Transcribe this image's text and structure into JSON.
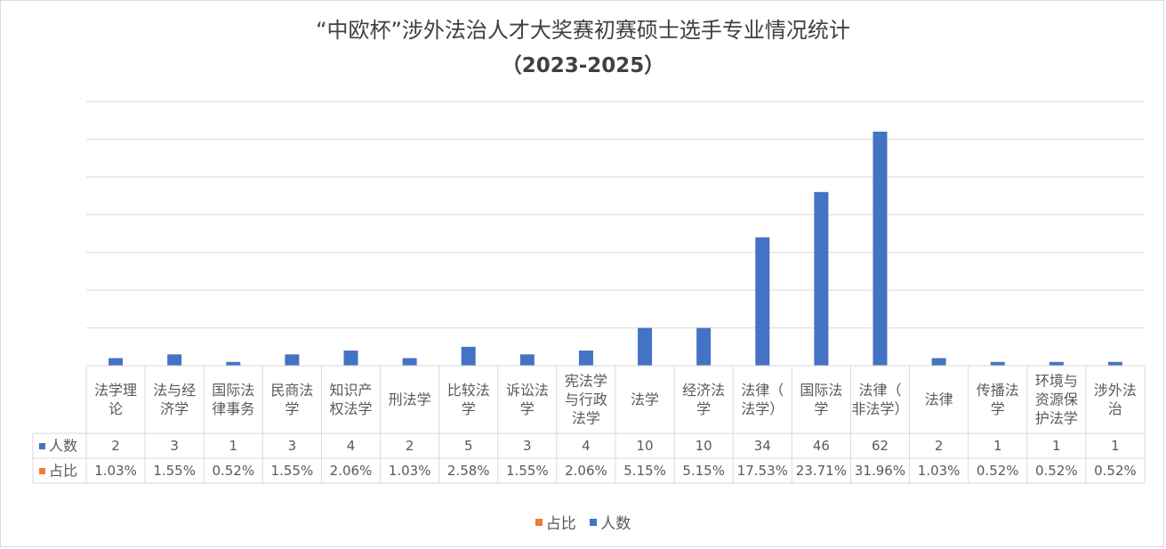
{
  "chart_data": {
    "type": "bar",
    "title": "“中欧杯”涉外法治人才大奖赛初赛硕士选手专业情况统计",
    "subtitle": "（2023-2025）",
    "categories": [
      [
        "法学理",
        "论"
      ],
      [
        "法与经",
        "济学"
      ],
      [
        "国际法",
        "律事务"
      ],
      [
        "民商法",
        "学"
      ],
      [
        "知识产",
        "权法学"
      ],
      [
        "刑法学"
      ],
      [
        "比较法",
        "学"
      ],
      [
        "诉讼法",
        "学"
      ],
      [
        "宪法学",
        "与行政",
        "法学"
      ],
      [
        "法学"
      ],
      [
        "经济法",
        "学"
      ],
      [
        "法律（",
        "法学）"
      ],
      [
        "国际法",
        "学"
      ],
      [
        "法律（",
        "非法学）"
      ],
      [
        "法律"
      ],
      [
        "传播法",
        "学"
      ],
      [
        "环境与",
        "资源保",
        "护法学"
      ],
      [
        "涉外法",
        "治"
      ]
    ],
    "series": [
      {
        "name": "人数",
        "color": "#4472C4",
        "values": [
          2,
          3,
          1,
          3,
          4,
          2,
          5,
          3,
          4,
          10,
          10,
          34,
          46,
          62,
          2,
          1,
          1,
          1
        ],
        "labels": [
          "2",
          "3",
          "1",
          "3",
          "4",
          "2",
          "5",
          "3",
          "4",
          "10",
          "10",
          "34",
          "46",
          "62",
          "2",
          "1",
          "1",
          "1"
        ]
      },
      {
        "name": "占比",
        "color": "#ED7D31",
        "values": [
          1.03,
          1.55,
          0.52,
          1.55,
          2.06,
          1.03,
          2.58,
          1.55,
          2.06,
          5.15,
          5.15,
          17.53,
          23.71,
          31.96,
          1.03,
          0.52,
          0.52,
          0.52
        ],
        "labels": [
          "1.03%",
          "1.55%",
          "0.52%",
          "1.55%",
          "2.06%",
          "1.03%",
          "2.58%",
          "1.55%",
          "2.06%",
          "5.15%",
          "5.15%",
          "17.53%",
          "23.71%",
          "31.96%",
          "1.03%",
          "0.52%",
          "0.52%",
          "0.52%"
        ]
      }
    ],
    "ylim": [
      0,
      70
    ],
    "grid": true,
    "data_table": true,
    "legend": {
      "position": "bottom",
      "order": [
        "占比",
        "人数"
      ]
    }
  }
}
